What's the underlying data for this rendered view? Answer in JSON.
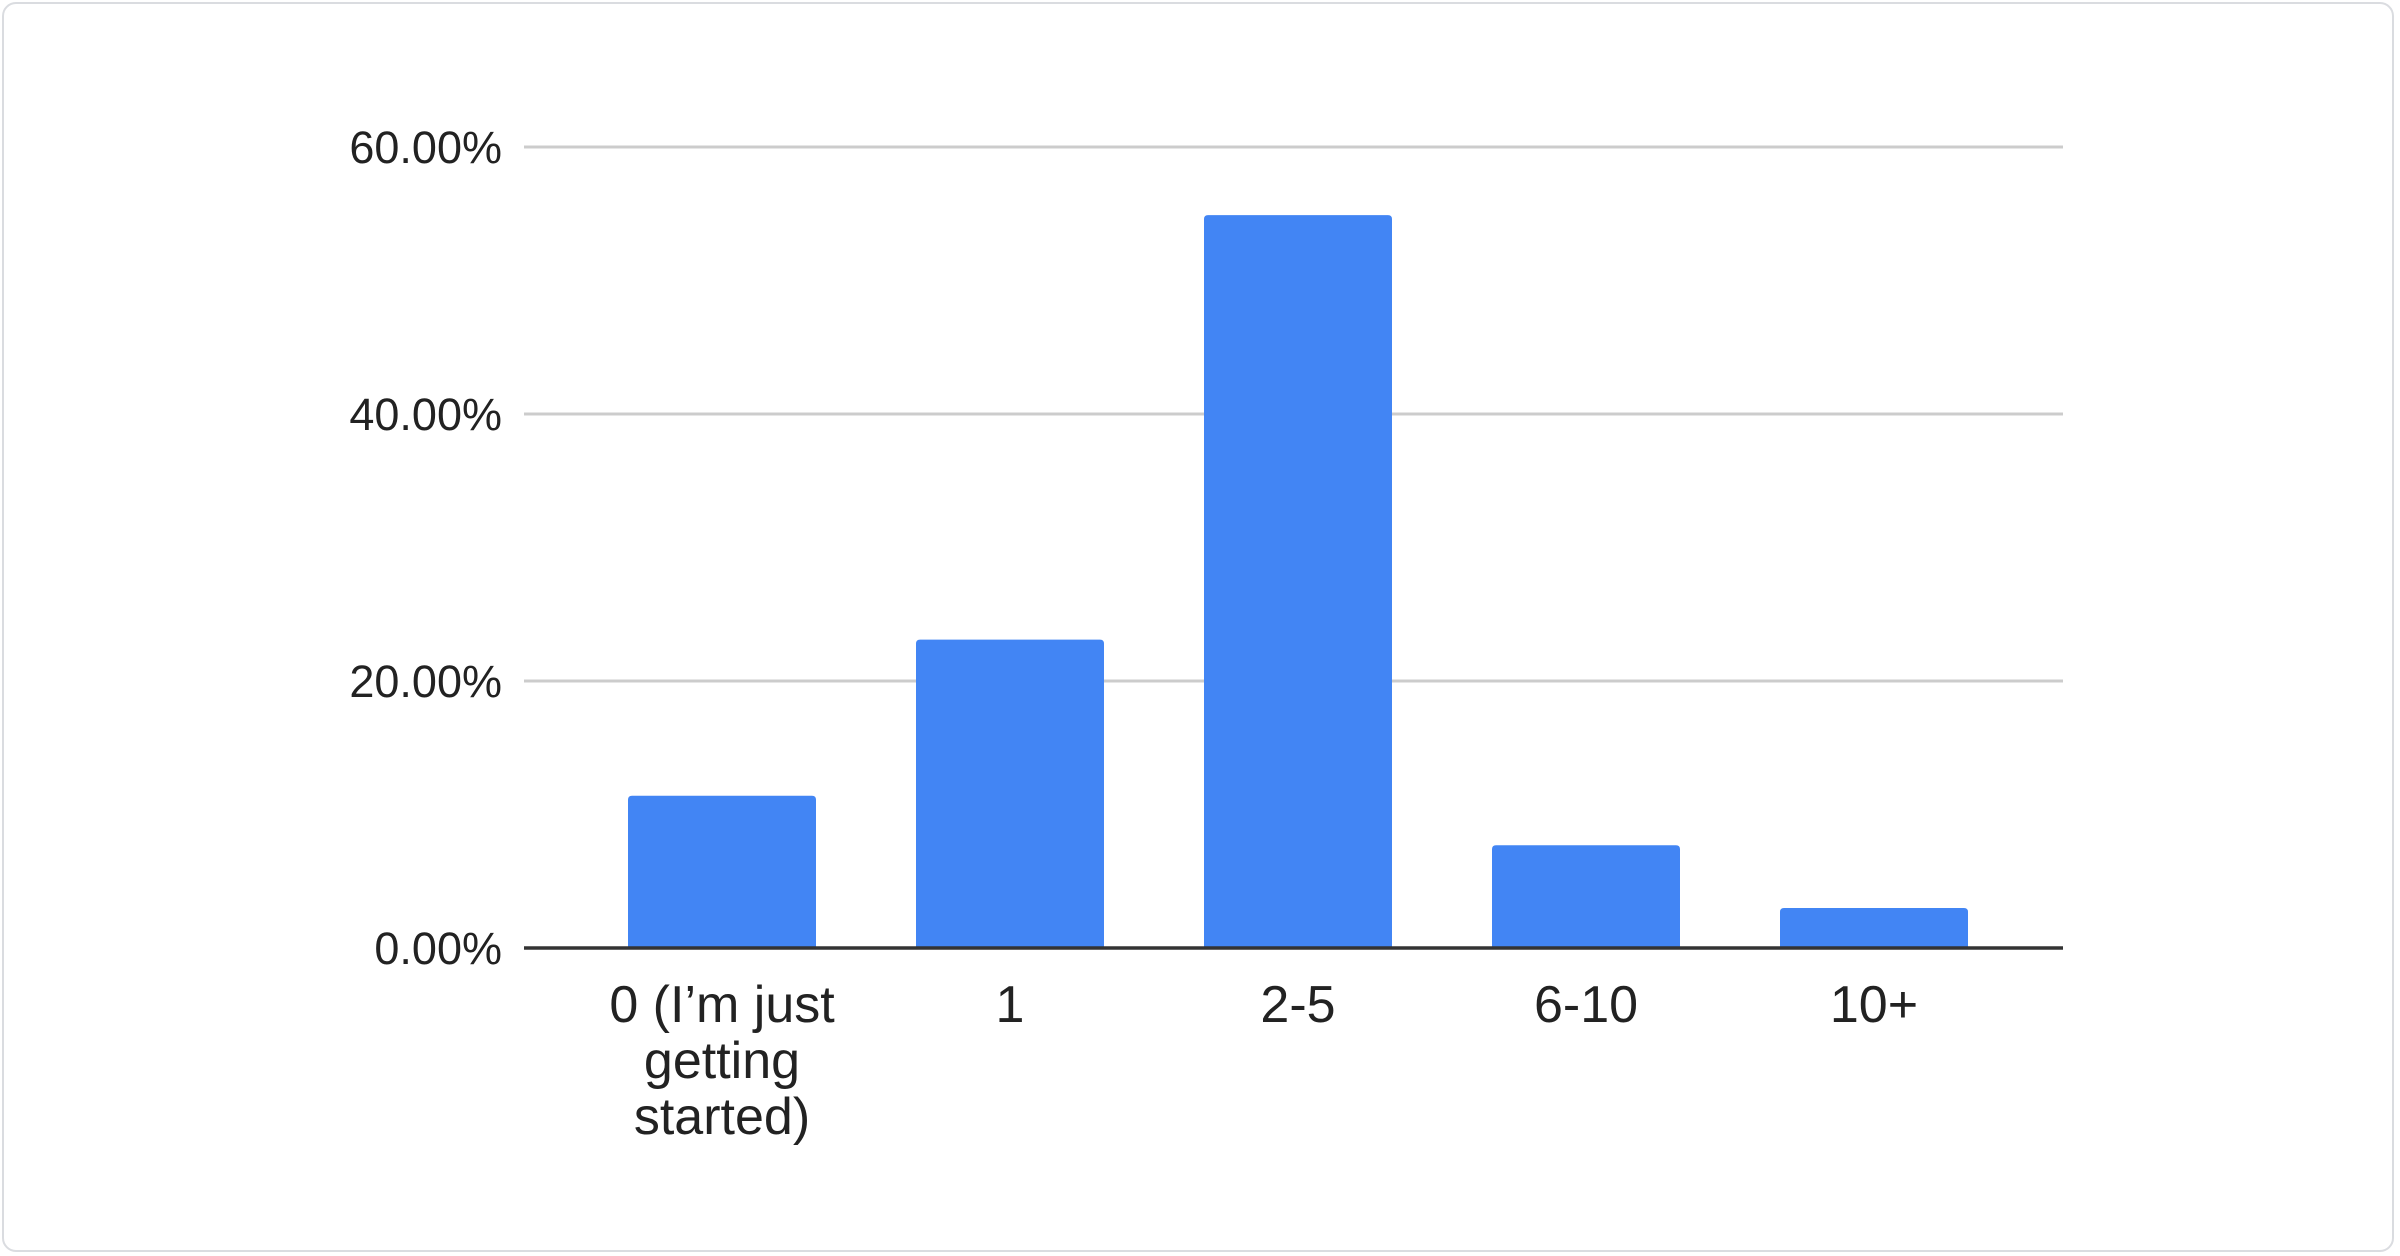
{
  "chart_data": {
    "type": "bar",
    "categories": [
      "0 (I’m just getting started)",
      "1",
      "2-5",
      "6-10",
      "10+"
    ],
    "category_lines": [
      [
        "0 (I’m just",
        "getting",
        "started)"
      ],
      [
        "1"
      ],
      [
        "2-5"
      ],
      [
        "6-10"
      ],
      [
        "10+"
      ]
    ],
    "values": [
      11.4,
      23.1,
      54.9,
      7.7,
      3.0
    ],
    "title": "",
    "xlabel": "",
    "ylabel": "",
    "ylim": [
      0,
      60
    ],
    "yticks": [
      0,
      20,
      40,
      60
    ],
    "ytick_labels": [
      "0.00%",
      "20.00%",
      "40.00%",
      "60.00%"
    ],
    "grid": true,
    "legend": "none",
    "bar_color": "#4285f4",
    "grid_color": "#cccccc",
    "axis_color": "#333333"
  }
}
